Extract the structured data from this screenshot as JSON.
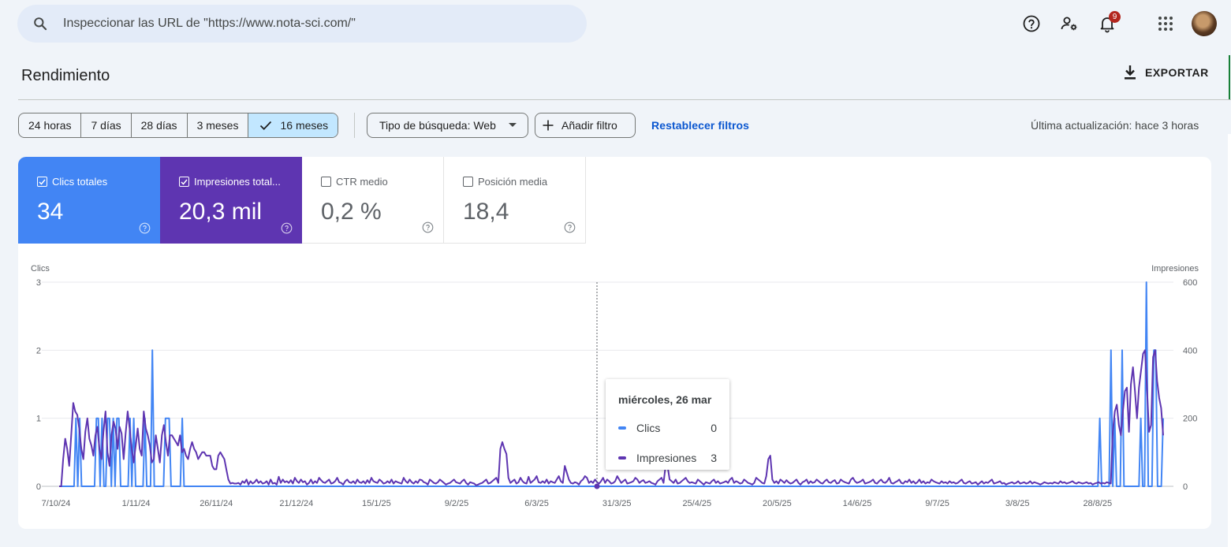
{
  "search": {
    "placeholder": "Inspeccionar las URL de \"https://www.nota-sci.com/\""
  },
  "top_icons": [
    "help-icon",
    "manage-accounts-icon",
    "notifications-icon",
    "apps-grid-icon"
  ],
  "notifications": {
    "count": "9"
  },
  "header": {
    "title": "Rendimiento",
    "export_label": "EXPORTAR"
  },
  "date_ranges": [
    {
      "label": "24 horas",
      "active": false
    },
    {
      "label": "7 días",
      "active": false
    },
    {
      "label": "28 días",
      "active": false
    },
    {
      "label": "3 meses",
      "active": false
    },
    {
      "label": "16 meses",
      "active": true
    }
  ],
  "filters": {
    "search_type": "Tipo de búsqueda: Web",
    "add_filter": "Añadir filtro",
    "reset": "Restablecer filtros",
    "last_update": "Última actualización: hace 3 horas"
  },
  "metrics": [
    {
      "label": "Clics totales",
      "value": "34",
      "checked": true,
      "color": "#4285f4"
    },
    {
      "label": "Impresiones total...",
      "value": "20,3 mil",
      "checked": true,
      "color": "#5e35b1"
    },
    {
      "label": "CTR medio",
      "value": "0,2 %",
      "checked": false
    },
    {
      "label": "Posición media",
      "value": "18,4",
      "checked": false
    }
  ],
  "tooltip": {
    "date": "miércoles, 26 mar",
    "rows": [
      {
        "label": "Clics",
        "value": "0",
        "color": "#4285f4"
      },
      {
        "label": "Impresiones",
        "value": "3",
        "color": "#5e35b1"
      }
    ]
  },
  "chart_data": {
    "type": "line",
    "left_axis": {
      "label": "Clics",
      "ticks": [
        "0",
        "1",
        "2",
        "3"
      ],
      "ylim": [
        0,
        3
      ]
    },
    "right_axis": {
      "label": "Impresiones",
      "ticks": [
        "0",
        "200",
        "400",
        "600"
      ],
      "ylim": [
        0,
        600
      ]
    },
    "x_tick_labels": [
      "7/10/24",
      "1/11/24",
      "26/11/24",
      "21/12/24",
      "15/1/25",
      "9/2/25",
      "6/3/25",
      "31/3/25",
      "25/4/25",
      "20/5/25",
      "14/6/25",
      "9/7/25",
      "3/8/25",
      "28/8/25"
    ],
    "colors": {
      "clics": "#4285f4",
      "impresiones": "#5e35b1"
    },
    "series": [
      {
        "name": "Clics",
        "axis": "left",
        "values": [
          0,
          0,
          0,
          0,
          0,
          0,
          0,
          0,
          0,
          1,
          0,
          1,
          0,
          0,
          0,
          0,
          0,
          0,
          0,
          0,
          1,
          1,
          0,
          1,
          0,
          0,
          1,
          1,
          0,
          1,
          0,
          1,
          1,
          0,
          0,
          0,
          0,
          0,
          1,
          0,
          1,
          0,
          0,
          0,
          0,
          0,
          1,
          0,
          0,
          0,
          2,
          0,
          0,
          0,
          0,
          0,
          0,
          1,
          1,
          1,
          0,
          0,
          0,
          0,
          0,
          0,
          1,
          0,
          0,
          0,
          0,
          0,
          0,
          0,
          0,
          0,
          0,
          0,
          0,
          0,
          0,
          0,
          0,
          0,
          0,
          0,
          0,
          0,
          0,
          0,
          0,
          0,
          0,
          0,
          0,
          0,
          0,
          0,
          0,
          0,
          0,
          0,
          0,
          0,
          0,
          0,
          0,
          0,
          0,
          0,
          0,
          0,
          0,
          0,
          0,
          0,
          0,
          0,
          0,
          0,
          0,
          0,
          0,
          0,
          0,
          0,
          0,
          0,
          0,
          0,
          0,
          0,
          0,
          0,
          0,
          0,
          0,
          0,
          0,
          0,
          0,
          0,
          0,
          0,
          0,
          0,
          0,
          0,
          0,
          0,
          0,
          0,
          0,
          0,
          0,
          0,
          0,
          0,
          0,
          0,
          0,
          0,
          0,
          0,
          0,
          0,
          0,
          0,
          0,
          0,
          0,
          0,
          0,
          0,
          0,
          0,
          0,
          0,
          0,
          0,
          0,
          0,
          0,
          0,
          0,
          0,
          0,
          0,
          0,
          0,
          0,
          0,
          0,
          0,
          0,
          0,
          0,
          0,
          0,
          0,
          0,
          0,
          0,
          0,
          0,
          0,
          0,
          0,
          0,
          0,
          0,
          0,
          0,
          0,
          0,
          0,
          0,
          0,
          0,
          0,
          0,
          0,
          0,
          0,
          0,
          0,
          0,
          0,
          0,
          0,
          0,
          0,
          0,
          0,
          0,
          0,
          0,
          0,
          0,
          0,
          0,
          0,
          0,
          0,
          0,
          0,
          0,
          0,
          0,
          0,
          0,
          0,
          0,
          0,
          0,
          0,
          0,
          0,
          0,
          0,
          0,
          0,
          0,
          0,
          0,
          0,
          0,
          0,
          0,
          0,
          0,
          0,
          0,
          0,
          0,
          0,
          0,
          0,
          0,
          0,
          0,
          0,
          0,
          0,
          0,
          0,
          0,
          0,
          0,
          0,
          0,
          0,
          0,
          0,
          0,
          0,
          0,
          0,
          0,
          0,
          0,
          0,
          0,
          0,
          0,
          0,
          0,
          0,
          0,
          0,
          0,
          0,
          0,
          0,
          0,
          0,
          0,
          0,
          0,
          0,
          0,
          0,
          0,
          0,
          0,
          0,
          0,
          0,
          0,
          0,
          0,
          0,
          0,
          0,
          0,
          0,
          0,
          0,
          0,
          0,
          0,
          0,
          0,
          0,
          0,
          0,
          0,
          0,
          0,
          0,
          0,
          0,
          0,
          0,
          0,
          0,
          0,
          0,
          0,
          0,
          0,
          0,
          0,
          0,
          0,
          0,
          0,
          0,
          0,
          0,
          0,
          0,
          0,
          0,
          0,
          0,
          0,
          0,
          0,
          0,
          0,
          0,
          0,
          0,
          0,
          0,
          0,
          0,
          0,
          0,
          0,
          0,
          0,
          0,
          0,
          0,
          0,
          0,
          0,
          0,
          0,
          0,
          0,
          0,
          0,
          0,
          0,
          0,
          0,
          0,
          0,
          0,
          0,
          0,
          0,
          0,
          0,
          0,
          0,
          0,
          0,
          0,
          0,
          0,
          0,
          0,
          0,
          0,
          0,
          0,
          0,
          0,
          0,
          0,
          0,
          0,
          0,
          0,
          0,
          0,
          0,
          0,
          0,
          0,
          0,
          0,
          0,
          0,
          0,
          0,
          0,
          0,
          0,
          0,
          0,
          0,
          0,
          0,
          0,
          0,
          0,
          0,
          0,
          0,
          0,
          0,
          0,
          0,
          0,
          0,
          0,
          0,
          0,
          0,
          0,
          0,
          0,
          0,
          0,
          0,
          0,
          0,
          0,
          0,
          0,
          0,
          0,
          0,
          0,
          0,
          0,
          0,
          0,
          0,
          0,
          0,
          0,
          0,
          0,
          0,
          0,
          0,
          0,
          0,
          0,
          0,
          0,
          0,
          0,
          0,
          0,
          0,
          0,
          0,
          0,
          0,
          0,
          0,
          0,
          0,
          0,
          0,
          0,
          0,
          0,
          0,
          0,
          0,
          0,
          0,
          0,
          0,
          0,
          0,
          0,
          0,
          0,
          0,
          0,
          0,
          0,
          0,
          0,
          0,
          0,
          0,
          0,
          0,
          0,
          0,
          0,
          0,
          0,
          0,
          0,
          0,
          0,
          0,
          1,
          0,
          0,
          0,
          0,
          0,
          2,
          0,
          1,
          0,
          0,
          0,
          2,
          0,
          0,
          0,
          0,
          0,
          0,
          0,
          0,
          0,
          1,
          0,
          0,
          3,
          0,
          0,
          0,
          2,
          2,
          0,
          0,
          0,
          1
        ]
      },
      {
        "name": "Impresiones",
        "axis": "left_scaled_right",
        "values": [
          0,
          0,
          80,
          140,
          110,
          60,
          150,
          245,
          220,
          210,
          170,
          110,
          80,
          160,
          200,
          140,
          120,
          90,
          150,
          175,
          110,
          80,
          160,
          220,
          100,
          60,
          150,
          190,
          170,
          110,
          175,
          155,
          80,
          155,
          220,
          170,
          110,
          70,
          120,
          170,
          110,
          90,
          220,
          170,
          150,
          120,
          70,
          80,
          150,
          110,
          70,
          150,
          180,
          130,
          90,
          150,
          150,
          140,
          130,
          120,
          150,
          100,
          110,
          90,
          80,
          110,
          130,
          110,
          100,
          80,
          90,
          100,
          100,
          90,
          90,
          90,
          60,
          50,
          50,
          90,
          100,
          90,
          80,
          50,
          20,
          8,
          10,
          8,
          8,
          10,
          5,
          15,
          10,
          20,
          5,
          15,
          8,
          12,
          20,
          10,
          15,
          8,
          10,
          15,
          5,
          20,
          8,
          10,
          5,
          28,
          10,
          20,
          12,
          15,
          10,
          18,
          8,
          25,
          15,
          10,
          20,
          12,
          15,
          5,
          10,
          20,
          8,
          15,
          10,
          25,
          18,
          12,
          10,
          15,
          20,
          8,
          10,
          15,
          25,
          12,
          10,
          5,
          15,
          20,
          12,
          10,
          15,
          8,
          20,
          12,
          10,
          15,
          8,
          18,
          10,
          25,
          15,
          12,
          10,
          20,
          15,
          8,
          10,
          15,
          10,
          20,
          8,
          15,
          12,
          10,
          8,
          25,
          15,
          10,
          20,
          12,
          8,
          15,
          10,
          20,
          18,
          12,
          10,
          5,
          20,
          15,
          10,
          8,
          12,
          20,
          15,
          10,
          5,
          8,
          10,
          15,
          20,
          12,
          10,
          8,
          15,
          20,
          10,
          5,
          12,
          10,
          8,
          3,
          5,
          8,
          10,
          15,
          20,
          8,
          10,
          15,
          20,
          25,
          10,
          110,
          130,
          110,
          95,
          25,
          10,
          15,
          20,
          8,
          12,
          25,
          15,
          10,
          8,
          28,
          10,
          15,
          20,
          30,
          12,
          10,
          15,
          10,
          20,
          8,
          15,
          12,
          10,
          20,
          30,
          15,
          10,
          60,
          40,
          20,
          10,
          8,
          12,
          10,
          5,
          15,
          20,
          30,
          25,
          10,
          15,
          10,
          20,
          12,
          8,
          15,
          25,
          10,
          20,
          15,
          8,
          10,
          15,
          30,
          20,
          10,
          15,
          20,
          8,
          10,
          12,
          15,
          25,
          20,
          10,
          15,
          18,
          10,
          12,
          15,
          10,
          8,
          5,
          15,
          20,
          25,
          10,
          60,
          60,
          20,
          15,
          10,
          20,
          8,
          10,
          15,
          20,
          25,
          15,
          10,
          12,
          10,
          8,
          20,
          15,
          10,
          5,
          12,
          10,
          8,
          15,
          20,
          10,
          15,
          8,
          10,
          12,
          15,
          10,
          20,
          25,
          10,
          15,
          12,
          8,
          10,
          20,
          15,
          10,
          8,
          5,
          10,
          25,
          20,
          15,
          10,
          8,
          30,
          80,
          90,
          20,
          10,
          15,
          8,
          20,
          15,
          10,
          18,
          12,
          8,
          10,
          15,
          20,
          10,
          5,
          12,
          15,
          20,
          8,
          15,
          10,
          12,
          20,
          15,
          10,
          8,
          15,
          20,
          12,
          10,
          15,
          18,
          8,
          10,
          20,
          15,
          12,
          10,
          8,
          20,
          25,
          15,
          10,
          12,
          15,
          20,
          8,
          10,
          12,
          15,
          20,
          10,
          8,
          15,
          20,
          12,
          10,
          15,
          25,
          10,
          8,
          12,
          15,
          20,
          10,
          8,
          15,
          12,
          20,
          10,
          15,
          8,
          12,
          20,
          10,
          15,
          8,
          12,
          10,
          20,
          15,
          12,
          10,
          8,
          15,
          10,
          12,
          8,
          15,
          10,
          12,
          8,
          10,
          15,
          20,
          10,
          8,
          12,
          15,
          8,
          10,
          12,
          5,
          10,
          15,
          8,
          12,
          10,
          15,
          20,
          8,
          10,
          12,
          15,
          8,
          10,
          5,
          8,
          10,
          12,
          8,
          10,
          15,
          8,
          10,
          12,
          8,
          10,
          15,
          8,
          12,
          10,
          8,
          5,
          8,
          12,
          10,
          8,
          10,
          8,
          12,
          10,
          8,
          15,
          10,
          12,
          8,
          10,
          12,
          15,
          10,
          8,
          12,
          10,
          8,
          10,
          12,
          8,
          10,
          5,
          8,
          10,
          12,
          8,
          10,
          8,
          12,
          10,
          8,
          160,
          220,
          240,
          180,
          150,
          220,
          280,
          290,
          160,
          300,
          350,
          280,
          200,
          290,
          340,
          390,
          400,
          280,
          160,
          180,
          380,
          400,
          310,
          260,
          230,
          150
        ]
      }
    ]
  }
}
